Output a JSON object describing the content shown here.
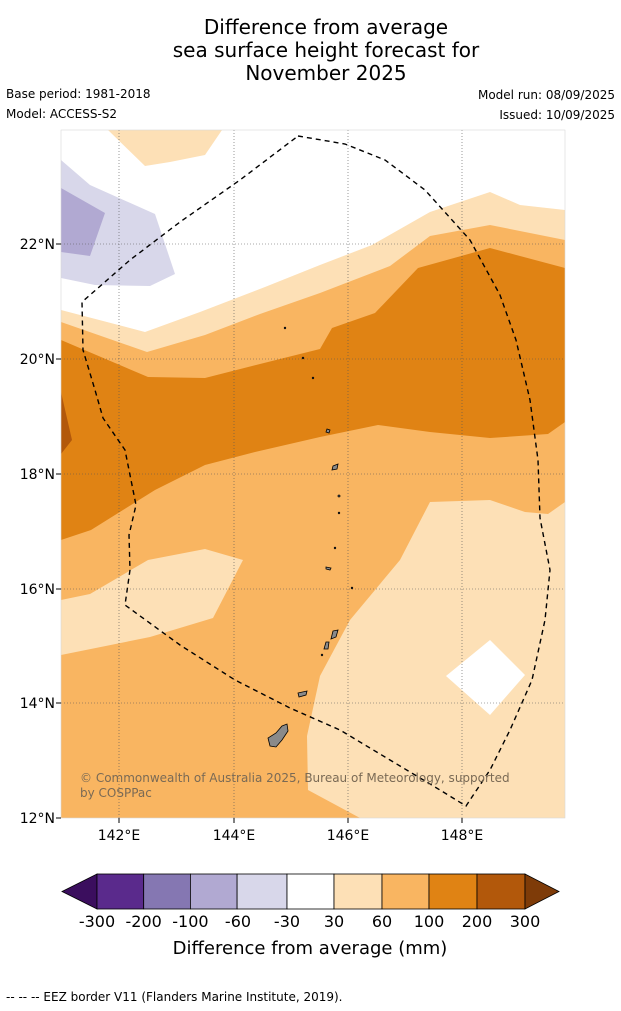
{
  "title": {
    "line1": "Difference from average",
    "line2": "sea surface height forecast for",
    "line3": "November 2025"
  },
  "meta": {
    "base_period": "Base period: 1981-2018",
    "model": "Model: ACCESS-S2",
    "model_run": "Model run: 08/09/2025",
    "issued": "Issued: 10/09/2025"
  },
  "map": {
    "lat_range": [
      12,
      24
    ],
    "lon_range": [
      141,
      149.8
    ],
    "lat_ticks": [
      "12°N",
      "14°N",
      "16°N",
      "18°N",
      "20°N",
      "22°N"
    ],
    "lon_ticks": [
      "142°E",
      "144°E",
      "146°E",
      "148°E"
    ],
    "copyright": "© Commonwealth of Australia 2025, Bureau of Meteorology, supported by COSPPac",
    "colors": {
      "c_m300": "#3b0e5e",
      "c_m200": "#5a2a8c",
      "c_m100": "#8577b2",
      "c_m60": "#b1a9d2",
      "c_m30": "#d8d7ea",
      "c_0": "#ffffff",
      "c_30": "#fde0b6",
      "c_60": "#f9b561",
      "c_100": "#e08314",
      "c_200": "#b2580b",
      "c_300": "#7e3b08",
      "land": "#8a8a8a"
    }
  },
  "colorbar": {
    "labels": [
      "-300",
      "-200",
      "-100",
      "-60",
      "-30",
      "30",
      "60",
      "100",
      "200",
      "300"
    ],
    "title": "Difference from average (mm)"
  },
  "footer": "-- -- -- EEZ border V11 (Flanders Marine Institute, 2019)."
}
